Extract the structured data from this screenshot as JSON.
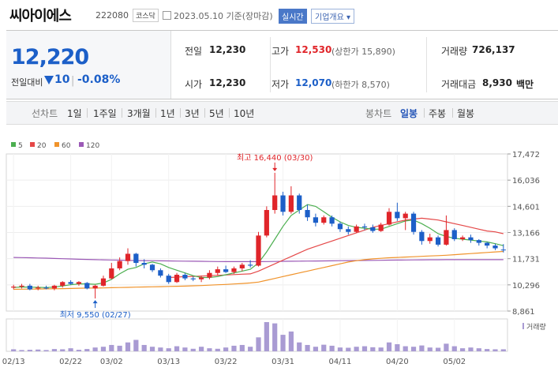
{
  "header": {
    "name": "씨아이에스",
    "code": "222080",
    "market": "코스닥",
    "date": "2023.05.10 기준(장마감)",
    "realtime": "실시간",
    "company_info": "기업개요 ▾"
  },
  "quote": {
    "price": "12,220",
    "change_label": "전일대비",
    "change": "10",
    "change_pct": "-0.08%",
    "prev_label": "전일",
    "prev": "12,230",
    "open_label": "시가",
    "open": "12,230",
    "high_label": "고가",
    "high": "12,530",
    "upper_limit": "(상한가 15,890)",
    "low_label": "저가",
    "low": "12,070",
    "lower_limit": "(하한가 8,570)",
    "volume_label": "거래량",
    "volume": "726,137",
    "value_label": "거래대금",
    "value": "8,930",
    "value_unit": "백만"
  },
  "tabs": {
    "line_chart": "선차트",
    "periods": [
      "1일",
      "1주일",
      "3개월",
      "1년",
      "3년",
      "5년",
      "10년"
    ],
    "candle_chart": "봉차트",
    "candles": [
      "일봉",
      "주봉",
      "월봉"
    ],
    "active_candle": "일봉"
  },
  "colors": {
    "up": "#e0252a",
    "down": "#1c5fc8",
    "ma5": "#4caf50",
    "ma20": "#e54848",
    "ma60": "#f0932b",
    "ma120": "#9b59b6",
    "volume": "#a99bd3"
  },
  "chart_data": {
    "type": "candlestick",
    "legend": [
      {
        "name": "5",
        "color": "#4caf50"
      },
      {
        "name": "20",
        "color": "#e54848"
      },
      {
        "name": "60",
        "color": "#f0932b"
      },
      {
        "name": "120",
        "color": "#9b59b6"
      }
    ],
    "y_ticks": [
      "17,472",
      "16,036",
      "14,601",
      "13,166",
      "11,731",
      "10,296",
      "8,861"
    ],
    "ylim": [
      8861,
      17472
    ],
    "x_ticks": [
      {
        "label": "02/13",
        "i": 0
      },
      {
        "label": "02/22",
        "i": 7
      },
      {
        "label": "03/02",
        "i": 12
      },
      {
        "label": "03/13",
        "i": 19
      },
      {
        "label": "03/22",
        "i": 26
      },
      {
        "label": "03/31",
        "i": 33
      },
      {
        "label": "04/11",
        "i": 40
      },
      {
        "label": "04/20",
        "i": 47
      },
      {
        "label": "05/02",
        "i": 54
      }
    ],
    "annotations": {
      "max": {
        "text": "최고 16,440 (03/30)",
        "i": 32,
        "value": 16440
      },
      "min": {
        "text": "최저 9,550 (02/27)",
        "i": 10,
        "value": 9550
      }
    },
    "volume_label": "거래량",
    "candles": [
      {
        "o": 10150,
        "h": 10300,
        "l": 10050,
        "c": 10200
      },
      {
        "o": 10200,
        "h": 10350,
        "l": 10100,
        "c": 10250
      },
      {
        "o": 10250,
        "h": 10350,
        "l": 10000,
        "c": 10050
      },
      {
        "o": 10100,
        "h": 10250,
        "l": 10000,
        "c": 10150
      },
      {
        "o": 10150,
        "h": 10250,
        "l": 10050,
        "c": 10100
      },
      {
        "o": 10100,
        "h": 10300,
        "l": 10000,
        "c": 10250
      },
      {
        "o": 10250,
        "h": 10500,
        "l": 10150,
        "c": 10450
      },
      {
        "o": 10450,
        "h": 10550,
        "l": 10300,
        "c": 10350
      },
      {
        "o": 10350,
        "h": 10500,
        "l": 10250,
        "c": 10450
      },
      {
        "o": 10400,
        "h": 10450,
        "l": 10050,
        "c": 10100
      },
      {
        "o": 10100,
        "h": 10300,
        "l": 9550,
        "c": 10250
      },
      {
        "o": 10250,
        "h": 10800,
        "l": 10200,
        "c": 10650
      },
      {
        "o": 10650,
        "h": 11500,
        "l": 10600,
        "c": 11200
      },
      {
        "o": 11200,
        "h": 11800,
        "l": 11100,
        "c": 11600
      },
      {
        "o": 11600,
        "h": 12300,
        "l": 11400,
        "c": 12000
      },
      {
        "o": 12000,
        "h": 12050,
        "l": 11300,
        "c": 11500
      },
      {
        "o": 11500,
        "h": 11700,
        "l": 11200,
        "c": 11400
      },
      {
        "o": 11400,
        "h": 11450,
        "l": 11000,
        "c": 11100
      },
      {
        "o": 11100,
        "h": 11200,
        "l": 10700,
        "c": 10800
      },
      {
        "o": 10800,
        "h": 10900,
        "l": 10350,
        "c": 10450
      },
      {
        "o": 10450,
        "h": 10950,
        "l": 10400,
        "c": 10850
      },
      {
        "o": 10850,
        "h": 10950,
        "l": 10550,
        "c": 10650
      },
      {
        "o": 10650,
        "h": 10750,
        "l": 10500,
        "c": 10600
      },
      {
        "o": 10600,
        "h": 10800,
        "l": 10450,
        "c": 10700
      },
      {
        "o": 10700,
        "h": 11100,
        "l": 10600,
        "c": 10950
      },
      {
        "o": 10950,
        "h": 11300,
        "l": 10800,
        "c": 11150
      },
      {
        "o": 11150,
        "h": 11350,
        "l": 10950,
        "c": 11000
      },
      {
        "o": 11000,
        "h": 11300,
        "l": 10900,
        "c": 11200
      },
      {
        "o": 11200,
        "h": 11500,
        "l": 11050,
        "c": 11400
      },
      {
        "o": 11400,
        "h": 11650,
        "l": 11250,
        "c": 11350
      },
      {
        "o": 11350,
        "h": 13200,
        "l": 11300,
        "c": 13000
      },
      {
        "o": 13000,
        "h": 14600,
        "l": 12900,
        "c": 14400
      },
      {
        "o": 14400,
        "h": 16440,
        "l": 14200,
        "c": 15200
      },
      {
        "o": 15200,
        "h": 15400,
        "l": 14100,
        "c": 14300
      },
      {
        "o": 14300,
        "h": 15700,
        "l": 14200,
        "c": 15200
      },
      {
        "o": 15200,
        "h": 15300,
        "l": 14200,
        "c": 14400
      },
      {
        "o": 14400,
        "h": 14700,
        "l": 13800,
        "c": 14000
      },
      {
        "o": 14000,
        "h": 14200,
        "l": 13500,
        "c": 13700
      },
      {
        "o": 13700,
        "h": 14100,
        "l": 13600,
        "c": 14000
      },
      {
        "o": 14000,
        "h": 14100,
        "l": 13500,
        "c": 13650
      },
      {
        "o": 13650,
        "h": 13750,
        "l": 13200,
        "c": 13350
      },
      {
        "o": 13350,
        "h": 13500,
        "l": 13050,
        "c": 13200
      },
      {
        "o": 13200,
        "h": 13600,
        "l": 13150,
        "c": 13500
      },
      {
        "o": 13500,
        "h": 13650,
        "l": 13300,
        "c": 13450
      },
      {
        "o": 13450,
        "h": 13600,
        "l": 13150,
        "c": 13250
      },
      {
        "o": 13250,
        "h": 13700,
        "l": 13200,
        "c": 13600
      },
      {
        "o": 13600,
        "h": 14500,
        "l": 13550,
        "c": 14300
      },
      {
        "o": 14300,
        "h": 14800,
        "l": 13800,
        "c": 13950
      },
      {
        "o": 13950,
        "h": 14300,
        "l": 13300,
        "c": 14200
      },
      {
        "o": 14200,
        "h": 14300,
        "l": 13050,
        "c": 13200
      },
      {
        "o": 13200,
        "h": 13300,
        "l": 12500,
        "c": 12700
      },
      {
        "o": 12700,
        "h": 13100,
        "l": 12550,
        "c": 12900
      },
      {
        "o": 12900,
        "h": 13000,
        "l": 12400,
        "c": 12500
      },
      {
        "o": 12500,
        "h": 14100,
        "l": 12450,
        "c": 13300
      },
      {
        "o": 13300,
        "h": 13400,
        "l": 12700,
        "c": 12800
      },
      {
        "o": 12800,
        "h": 13000,
        "l": 12700,
        "c": 12900
      },
      {
        "o": 12900,
        "h": 13050,
        "l": 12600,
        "c": 12750
      },
      {
        "o": 12750,
        "h": 12800,
        "l": 12450,
        "c": 12600
      },
      {
        "o": 12600,
        "h": 12650,
        "l": 12300,
        "c": 12450
      },
      {
        "o": 12450,
        "h": 12550,
        "l": 12200,
        "c": 12300
      },
      {
        "o": 12230,
        "h": 12530,
        "l": 12070,
        "c": 12220
      }
    ],
    "volumes": [
      0.8,
      0.5,
      0.6,
      0.7,
      0.5,
      0.9,
      0.8,
      1.2,
      0.6,
      0.9,
      1.5,
      1.8,
      2.5,
      2.2,
      3.5,
      4.5,
      2.5,
      1.8,
      1.5,
      1.2,
      2.0,
      1.5,
      1.0,
      1.8,
      1.2,
      1.0,
      1.5,
      2.2,
      2.5,
      1.8,
      5.5,
      11.5,
      11.0,
      6.5,
      7.8,
      3.5,
      2.5,
      1.8,
      2.6,
      2.2,
      1.5,
      1.4,
      1.8,
      2.0,
      1.6,
      1.5,
      3.5,
      2.8,
      2.0,
      1.8,
      2.3,
      1.5,
      1.4,
      3.0,
      2.0,
      1.2,
      1.5,
      1.2,
      0.9,
      0.8,
      0.8
    ],
    "ma5": [
      10150,
      10180,
      10170,
      10160,
      10150,
      10170,
      10240,
      10300,
      10350,
      10350,
      10330,
      10400,
      10600,
      10900,
      11150,
      11250,
      11450,
      11550,
      11450,
      11250,
      11100,
      10950,
      10800,
      10700,
      10700,
      10750,
      10850,
      10950,
      11050,
      11150,
      11500,
      12100,
      12800,
      13500,
      14100,
      14400,
      14700,
      14600,
      14300,
      14000,
      13750,
      13550,
      13450,
      13400,
      13350,
      13350,
      13500,
      13650,
      13800,
      13850,
      13650,
      13400,
      13100,
      12950,
      12850,
      12800,
      12750,
      12700,
      12650,
      12550,
      12450
    ],
    "ma20": [
      null,
      null,
      null,
      null,
      null,
      null,
      null,
      null,
      null,
      null,
      null,
      null,
      null,
      null,
      null,
      null,
      null,
      null,
      null,
      10700,
      10720,
      10750,
      10760,
      10780,
      10800,
      10820,
      10840,
      10860,
      10880,
      10900,
      11050,
      11250,
      11450,
      11650,
      11850,
      12050,
      12250,
      12400,
      12550,
      12700,
      12850,
      13000,
      13150,
      13300,
      13450,
      13550,
      13650,
      13750,
      13850,
      13900,
      13950,
      13900,
      13850,
      13750,
      13650,
      13550,
      13450,
      13350,
      13250,
      13200,
      13100
    ],
    "ma60": [
      10050,
      10060,
      10065,
      10070,
      10075,
      10080,
      10090,
      10100,
      10110,
      10120,
      10125,
      10130,
      10140,
      10150,
      10160,
      10170,
      10180,
      10190,
      10200,
      10210,
      10220,
      10230,
      10245,
      10260,
      10280,
      10300,
      10320,
      10345,
      10370,
      10400,
      10450,
      10550,
      10650,
      10750,
      10850,
      10950,
      11050,
      11150,
      11250,
      11350,
      11450,
      11550,
      11620,
      11680,
      11720,
      11750,
      11780,
      11800,
      11820,
      11840,
      11860,
      11880,
      11900,
      11920,
      11950,
      11980,
      12010,
      12040,
      12070,
      12100,
      12130
    ],
    "ma120": [
      11800,
      11790,
      11780,
      11770,
      11760,
      11745,
      11730,
      11715,
      11700,
      11690,
      11680,
      11670,
      11660,
      11650,
      11640,
      11630,
      11625,
      11620,
      11615,
      11610,
      11600,
      11595,
      11590,
      11585,
      11580,
      11575,
      11570,
      11570,
      11570,
      11570,
      11570,
      11575,
      11580,
      11585,
      11590,
      11595,
      11600,
      11605,
      11610,
      11615,
      11620,
      11625,
      11630,
      11635,
      11640,
      11645,
      11650,
      11655,
      11660,
      11665,
      11670,
      11672,
      11674,
      11676,
      11678,
      11680,
      11680,
      11680,
      11680,
      11680,
      11680
    ]
  }
}
